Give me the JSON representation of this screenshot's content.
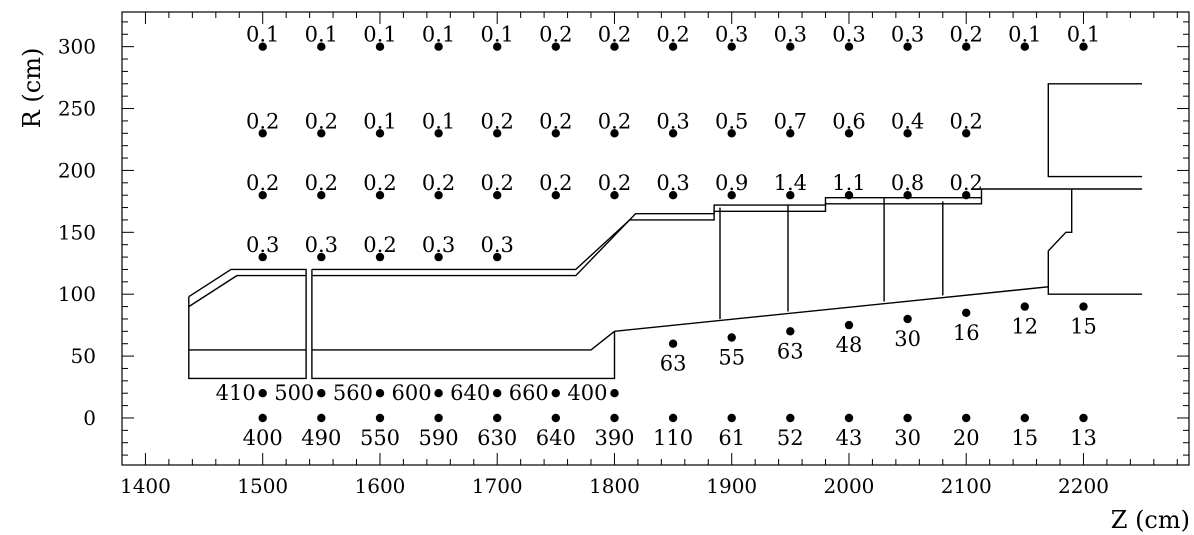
{
  "chart_data": {
    "type": "scatter",
    "xlabel": "Z (cm)",
    "ylabel": "R (cm)",
    "xlim": [
      1380,
      2290
    ],
    "ylim": [
      -38,
      328
    ],
    "xticks": [
      1400,
      1500,
      1600,
      1700,
      1800,
      1900,
      2000,
      2100,
      2200
    ],
    "yticks": [
      0,
      50,
      100,
      150,
      200,
      250,
      300
    ],
    "grid": false,
    "points": [
      {
        "z": 1500,
        "r": 300,
        "label": "0.1",
        "pos": "above"
      },
      {
        "z": 1550,
        "r": 300,
        "label": "0.1",
        "pos": "above"
      },
      {
        "z": 1600,
        "r": 300,
        "label": "0.1",
        "pos": "above"
      },
      {
        "z": 1650,
        "r": 300,
        "label": "0.1",
        "pos": "above"
      },
      {
        "z": 1700,
        "r": 300,
        "label": "0.1",
        "pos": "above"
      },
      {
        "z": 1750,
        "r": 300,
        "label": "0.2",
        "pos": "above"
      },
      {
        "z": 1800,
        "r": 300,
        "label": "0.2",
        "pos": "above"
      },
      {
        "z": 1850,
        "r": 300,
        "label": "0.2",
        "pos": "above"
      },
      {
        "z": 1900,
        "r": 300,
        "label": "0.3",
        "pos": "above"
      },
      {
        "z": 1950,
        "r": 300,
        "label": "0.3",
        "pos": "above"
      },
      {
        "z": 2000,
        "r": 300,
        "label": "0.3",
        "pos": "above"
      },
      {
        "z": 2050,
        "r": 300,
        "label": "0.3",
        "pos": "above"
      },
      {
        "z": 2100,
        "r": 300,
        "label": "0.2",
        "pos": "above"
      },
      {
        "z": 2150,
        "r": 300,
        "label": "0.1",
        "pos": "above"
      },
      {
        "z": 2200,
        "r": 300,
        "label": "0.1",
        "pos": "above"
      },
      {
        "z": 1500,
        "r": 230,
        "label": "0.2",
        "pos": "above"
      },
      {
        "z": 1550,
        "r": 230,
        "label": "0.2",
        "pos": "above"
      },
      {
        "z": 1600,
        "r": 230,
        "label": "0.1",
        "pos": "above"
      },
      {
        "z": 1650,
        "r": 230,
        "label": "0.1",
        "pos": "above"
      },
      {
        "z": 1700,
        "r": 230,
        "label": "0.2",
        "pos": "above"
      },
      {
        "z": 1750,
        "r": 230,
        "label": "0.2",
        "pos": "above"
      },
      {
        "z": 1800,
        "r": 230,
        "label": "0.2",
        "pos": "above"
      },
      {
        "z": 1850,
        "r": 230,
        "label": "0.3",
        "pos": "above"
      },
      {
        "z": 1900,
        "r": 230,
        "label": "0.5",
        "pos": "above"
      },
      {
        "z": 1950,
        "r": 230,
        "label": "0.7",
        "pos": "above"
      },
      {
        "z": 2000,
        "r": 230,
        "label": "0.6",
        "pos": "above"
      },
      {
        "z": 2050,
        "r": 230,
        "label": "0.4",
        "pos": "above"
      },
      {
        "z": 2100,
        "r": 230,
        "label": "0.2",
        "pos": "above"
      },
      {
        "z": 1500,
        "r": 180,
        "label": "0.2",
        "pos": "above"
      },
      {
        "z": 1550,
        "r": 180,
        "label": "0.2",
        "pos": "above"
      },
      {
        "z": 1600,
        "r": 180,
        "label": "0.2",
        "pos": "above"
      },
      {
        "z": 1650,
        "r": 180,
        "label": "0.2",
        "pos": "above"
      },
      {
        "z": 1700,
        "r": 180,
        "label": "0.2",
        "pos": "above"
      },
      {
        "z": 1750,
        "r": 180,
        "label": "0.2",
        "pos": "above"
      },
      {
        "z": 1800,
        "r": 180,
        "label": "0.2",
        "pos": "above"
      },
      {
        "z": 1850,
        "r": 180,
        "label": "0.3",
        "pos": "above"
      },
      {
        "z": 1900,
        "r": 180,
        "label": "0.9",
        "pos": "above"
      },
      {
        "z": 1950,
        "r": 180,
        "label": "1.4",
        "pos": "above"
      },
      {
        "z": 2000,
        "r": 180,
        "label": "1.1",
        "pos": "above"
      },
      {
        "z": 2050,
        "r": 180,
        "label": "0.8",
        "pos": "above"
      },
      {
        "z": 2100,
        "r": 180,
        "label": "0.2",
        "pos": "above"
      },
      {
        "z": 1500,
        "r": 130,
        "label": "0.3",
        "pos": "above"
      },
      {
        "z": 1550,
        "r": 130,
        "label": "0.3",
        "pos": "above"
      },
      {
        "z": 1600,
        "r": 130,
        "label": "0.2",
        "pos": "above"
      },
      {
        "z": 1650,
        "r": 130,
        "label": "0.3",
        "pos": "above"
      },
      {
        "z": 1700,
        "r": 130,
        "label": "0.3",
        "pos": "above"
      },
      {
        "z": 1850,
        "r": 60,
        "label": "63",
        "pos": "below"
      },
      {
        "z": 1900,
        "r": 65,
        "label": "55",
        "pos": "below"
      },
      {
        "z": 1950,
        "r": 70,
        "label": "63",
        "pos": "below"
      },
      {
        "z": 2000,
        "r": 75,
        "label": "48",
        "pos": "below"
      },
      {
        "z": 2050,
        "r": 80,
        "label": "30",
        "pos": "below"
      },
      {
        "z": 2100,
        "r": 85,
        "label": "16",
        "pos": "below"
      },
      {
        "z": 2150,
        "r": 90,
        "label": "12",
        "pos": "below"
      },
      {
        "z": 2200,
        "r": 90,
        "label": "15",
        "pos": "below"
      },
      {
        "z": 1500,
        "r": 20,
        "label": "410",
        "pos": "left"
      },
      {
        "z": 1550,
        "r": 20,
        "label": "500",
        "pos": "left"
      },
      {
        "z": 1600,
        "r": 20,
        "label": "560",
        "pos": "left"
      },
      {
        "z": 1650,
        "r": 20,
        "label": "600",
        "pos": "left"
      },
      {
        "z": 1700,
        "r": 20,
        "label": "640",
        "pos": "left"
      },
      {
        "z": 1750,
        "r": 20,
        "label": "660",
        "pos": "left"
      },
      {
        "z": 1800,
        "r": 20,
        "label": "400",
        "pos": "left"
      },
      {
        "z": 1500,
        "r": 0,
        "label": "400",
        "pos": "below"
      },
      {
        "z": 1550,
        "r": 0,
        "label": "490",
        "pos": "below"
      },
      {
        "z": 1600,
        "r": 0,
        "label": "550",
        "pos": "below"
      },
      {
        "z": 1650,
        "r": 0,
        "label": "590",
        "pos": "below"
      },
      {
        "z": 1700,
        "r": 0,
        "label": "630",
        "pos": "below"
      },
      {
        "z": 1750,
        "r": 0,
        "label": "640",
        "pos": "below"
      },
      {
        "z": 1800,
        "r": 0,
        "label": "390",
        "pos": "below"
      },
      {
        "z": 1850,
        "r": 0,
        "label": "110",
        "pos": "below"
      },
      {
        "z": 1900,
        "r": 0,
        "label": "61",
        "pos": "below"
      },
      {
        "z": 1950,
        "r": 0,
        "label": "52",
        "pos": "below"
      },
      {
        "z": 2000,
        "r": 0,
        "label": "43",
        "pos": "below"
      },
      {
        "z": 2050,
        "r": 0,
        "label": "30",
        "pos": "below"
      },
      {
        "z": 2100,
        "r": 0,
        "label": "20",
        "pos": "below"
      },
      {
        "z": 2150,
        "r": 0,
        "label": "15",
        "pos": "below"
      },
      {
        "z": 2200,
        "r": 0,
        "label": "13",
        "pos": "below"
      }
    ],
    "outline_paths": [
      [
        [
          1437,
          98
        ],
        [
          1473,
          120
        ],
        [
          1537,
          120
        ],
        [
          1537,
          32
        ],
        [
          1437,
          32
        ],
        [
          1437,
          98
        ]
      ],
      [
        [
          1437,
          90
        ],
        [
          1478,
          115
        ],
        [
          1537,
          115
        ]
      ],
      [
        [
          1437,
          55
        ],
        [
          1537,
          55
        ]
      ],
      [
        [
          1542,
          120
        ],
        [
          1542,
          32
        ],
        [
          1800,
          32
        ],
        [
          1800,
          70
        ]
      ],
      [
        [
          1542,
          120
        ],
        [
          1767,
          120
        ],
        [
          1813,
          160
        ],
        [
          1885,
          160
        ],
        [
          1885,
          167
        ],
        [
          1980,
          167
        ],
        [
          1980,
          173
        ],
        [
          2113,
          173
        ],
        [
          2113,
          185
        ],
        [
          2250,
          185
        ]
      ],
      [
        [
          1542,
          115
        ],
        [
          1767,
          115
        ],
        [
          1818,
          165
        ],
        [
          1885,
          165
        ],
        [
          1885,
          172
        ],
        [
          1980,
          172
        ],
        [
          1980,
          178
        ],
        [
          2113,
          178
        ]
      ],
      [
        [
          1542,
          55
        ],
        [
          1780,
          55
        ],
        [
          1800,
          70
        ]
      ],
      [
        [
          1800,
          70
        ],
        [
          2170,
          106
        ],
        [
          2170,
          100
        ],
        [
          2250,
          100
        ]
      ],
      [
        [
          1890,
          80
        ],
        [
          1890,
          170
        ]
      ],
      [
        [
          1948,
          86
        ],
        [
          1948,
          172
        ]
      ],
      [
        [
          2030,
          94
        ],
        [
          2030,
          178
        ]
      ],
      [
        [
          2080,
          99
        ],
        [
          2080,
          175
        ]
      ],
      [
        [
          2170,
          106
        ],
        [
          2170,
          135
        ],
        [
          2185,
          150
        ],
        [
          2190,
          150
        ],
        [
          2190,
          185
        ]
      ],
      [
        [
          2250,
          195
        ],
        [
          2170,
          195
        ],
        [
          2170,
          270
        ],
        [
          2250,
          270
        ]
      ]
    ]
  }
}
